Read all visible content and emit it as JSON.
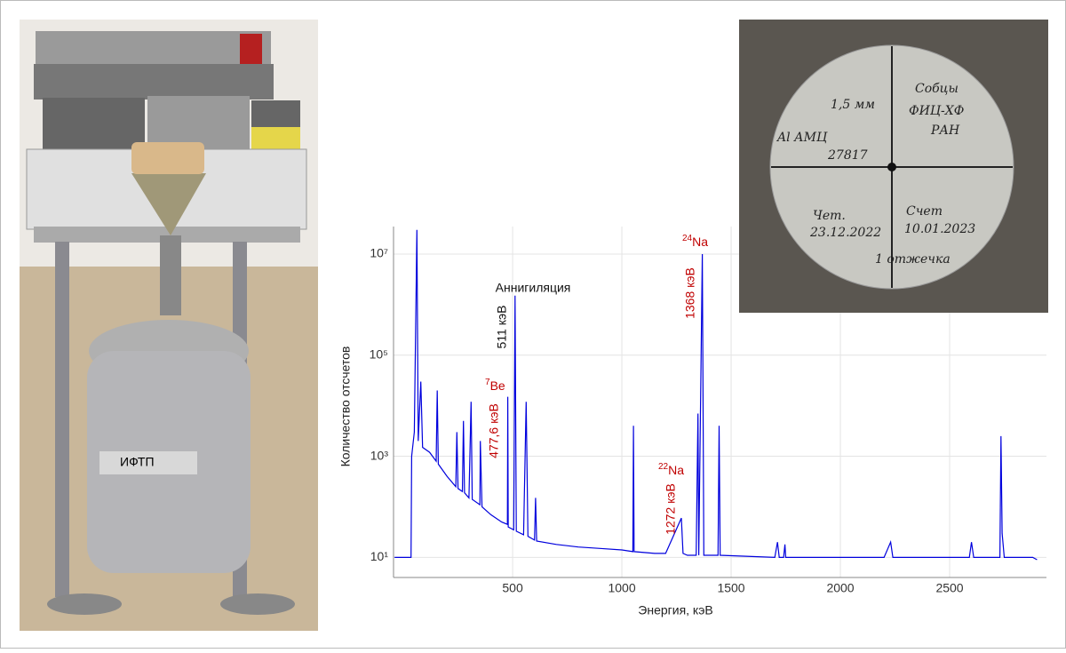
{
  "chart_data": {
    "type": "line",
    "log_y": true,
    "grid": true,
    "color": "#0000dd",
    "x_label": "Энергия, кэВ",
    "y_label": "Количество отсчетов",
    "xlim": [
      -45,
      2943
    ],
    "ylim": [
      4,
      35000000
    ],
    "xticks": [
      500,
      1000,
      1500,
      2000,
      2500
    ],
    "yticks": [
      {
        "value": 10,
        "label": "10¹"
      },
      {
        "value": 1000,
        "label": "10³"
      },
      {
        "value": 100000,
        "label": "10⁵"
      },
      {
        "value": 10000000,
        "label": "10⁷"
      }
    ],
    "x": [
      -40,
      35,
      38,
      50,
      62,
      68,
      80,
      88,
      120,
      150,
      155,
      160,
      200,
      240,
      245,
      250,
      270,
      275,
      280,
      300,
      310,
      315,
      350,
      352,
      360,
      400,
      450,
      476,
      477.6,
      480,
      505,
      511,
      517,
      550,
      562,
      570,
      600,
      605,
      610,
      700,
      800,
      900,
      1000,
      1050,
      1053,
      1056,
      1150,
      1200,
      1272,
      1280,
      1300,
      1340,
      1348,
      1352,
      1368,
      1375,
      1400,
      1440,
      1445,
      1450,
      1700,
      1712,
      1720,
      1740,
      1746,
      1750,
      2200,
      2230,
      2240,
      2590,
      2600,
      2610,
      2730,
      2735,
      2740,
      2750,
      2880,
      2900
    ],
    "values": [
      10,
      10,
      1000,
      3000,
      30000000,
      2000,
      30000,
      1500,
      1200,
      800,
      20000,
      700,
      400,
      250,
      3000,
      230,
      200,
      5000,
      190,
      150,
      12000,
      140,
      110,
      2000,
      100,
      70,
      50,
      45,
      15000,
      40,
      35,
      1500000,
      33,
      28,
      12000,
      26,
      22,
      150,
      21,
      18,
      16,
      15,
      14,
      13,
      4000,
      13,
      12,
      12,
      60,
      12,
      11,
      11,
      7000,
      11,
      10000000,
      11,
      11,
      11,
      4000,
      11,
      10,
      20,
      10,
      10,
      18,
      10,
      10,
      20,
      10,
      10,
      20,
      10,
      10,
      2500,
      30,
      10,
      10,
      9
    ],
    "annotations": [
      "Аннигиляция",
      "511 кэВ",
      "477,6 кэВ",
      "1272 кэВ",
      "1368 кэВ"
    ],
    "isotopes": [
      {
        "mass": "7",
        "element": "Be"
      },
      {
        "mass": "22",
        "element": "Na"
      },
      {
        "mass": "24",
        "element": "Na"
      }
    ]
  },
  "photos": {
    "dewar_label": "ИФТП",
    "disc": [
      "1,5 мм",
      "Al АМЦ",
      "27817",
      "Собцы",
      "ФИЦ-ХФ",
      "РАН",
      "Чет.",
      "23.12.2022",
      "Счет",
      "10.01.2023",
      "1 отжечка"
    ]
  }
}
